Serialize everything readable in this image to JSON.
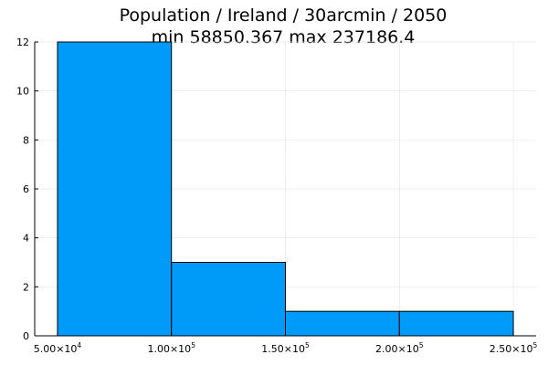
{
  "chart_data": {
    "type": "bar",
    "title": "Population / Ireland / 30arcmin / 2050",
    "subtitle": "min 58850.367  max 237186.4",
    "xlabel": "",
    "ylabel": "",
    "bins": [
      {
        "x0": 50000,
        "x1": 100000,
        "count": 12
      },
      {
        "x0": 100000,
        "x1": 150000,
        "count": 3
      },
      {
        "x0": 150000,
        "x1": 200000,
        "count": 1
      },
      {
        "x0": 200000,
        "x1": 250000,
        "count": 1
      }
    ],
    "xlim": [
      40000,
      260000
    ],
    "ylim": [
      0,
      12
    ],
    "x_ticks": [
      {
        "value": 50000,
        "mantissa": "5.00×10",
        "exponent": "4"
      },
      {
        "value": 100000,
        "mantissa": "1.00×10",
        "exponent": "5"
      },
      {
        "value": 150000,
        "mantissa": "1.50×10",
        "exponent": "5"
      },
      {
        "value": 200000,
        "mantissa": "2.00×10",
        "exponent": "5"
      },
      {
        "value": 250000,
        "mantissa": "2.50×10",
        "exponent": "5"
      }
    ],
    "y_ticks": [
      0,
      2,
      4,
      6,
      8,
      10,
      12
    ],
    "grid": true,
    "legend": "none",
    "colors": {
      "bar_fill": "#009af9",
      "bar_stroke": "#000000",
      "grid": "#e6e6e6",
      "axis": "#000000"
    }
  }
}
